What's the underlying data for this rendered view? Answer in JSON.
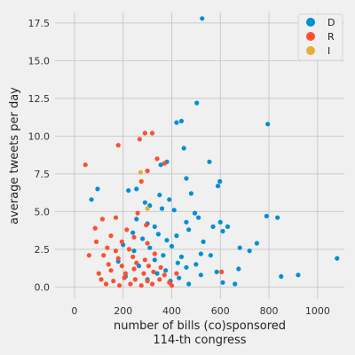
{
  "chart_data": {
    "type": "scatter",
    "xlabel": "number of bills (co)sponsored",
    "xlabel2": "114-th congress",
    "ylabel": "average tweets per day",
    "xlim": [
      -80,
      1110
    ],
    "ylim": [
      -0.8,
      18.2
    ],
    "x_ticks": [
      0,
      200,
      400,
      600,
      800,
      1000
    ],
    "y_ticks": [
      0.0,
      2.5,
      5.0,
      7.5,
      10.0,
      12.5,
      15.0,
      17.5
    ],
    "grid": true,
    "legend_position": "top-right",
    "series": [
      {
        "name": "D",
        "color": "#008fd5",
        "points": [
          [
            525,
            17.8
          ],
          [
            503,
            12.2
          ],
          [
            440,
            11.0
          ],
          [
            420,
            10.9
          ],
          [
            795,
            10.8
          ],
          [
            450,
            9.2
          ],
          [
            380,
            8.3
          ],
          [
            555,
            8.3
          ],
          [
            355,
            8.1
          ],
          [
            460,
            7.2
          ],
          [
            598,
            7.0
          ],
          [
            590,
            6.7
          ],
          [
            95,
            6.5
          ],
          [
            222,
            6.4
          ],
          [
            255,
            6.5
          ],
          [
            350,
            6.1
          ],
          [
            480,
            6.2
          ],
          [
            70,
            5.8
          ],
          [
            290,
            5.6
          ],
          [
            310,
            5.4
          ],
          [
            360,
            5.2
          ],
          [
            390,
            5.8
          ],
          [
            410,
            5.1
          ],
          [
            495,
            4.9
          ],
          [
            255,
            4.5
          ],
          [
            300,
            4.2
          ],
          [
            330,
            4.0
          ],
          [
            460,
            4.3
          ],
          [
            510,
            4.6
          ],
          [
            600,
            4.3
          ],
          [
            630,
            4.0
          ],
          [
            790,
            4.7
          ],
          [
            835,
            4.6
          ],
          [
            240,
            3.6
          ],
          [
            280,
            3.2
          ],
          [
            345,
            3.5
          ],
          [
            380,
            3.1
          ],
          [
            420,
            3.4
          ],
          [
            470,
            3.8
          ],
          [
            530,
            3.0
          ],
          [
            570,
            4.0
          ],
          [
            610,
            3.7
          ],
          [
            200,
            2.8
          ],
          [
            245,
            2.4
          ],
          [
            310,
            2.6
          ],
          [
            365,
            2.1
          ],
          [
            400,
            2.7
          ],
          [
            440,
            2.0
          ],
          [
            520,
            2.2
          ],
          [
            560,
            2.1
          ],
          [
            680,
            2.6
          ],
          [
            720,
            2.4
          ],
          [
            750,
            2.9
          ],
          [
            180,
            1.7
          ],
          [
            265,
            1.4
          ],
          [
            330,
            1.8
          ],
          [
            375,
            1.1
          ],
          [
            425,
            1.6
          ],
          [
            460,
            1.3
          ],
          [
            500,
            1.5
          ],
          [
            585,
            1.0
          ],
          [
            675,
            1.2
          ],
          [
            210,
            0.7
          ],
          [
            300,
            0.5
          ],
          [
            340,
            0.9
          ],
          [
            395,
            0.4
          ],
          [
            430,
            0.6
          ],
          [
            470,
            0.2
          ],
          [
            520,
            0.8
          ],
          [
            610,
            0.3
          ],
          [
            660,
            0.2
          ],
          [
            850,
            0.7
          ],
          [
            920,
            0.8
          ],
          [
            1080,
            1.9
          ]
        ]
      },
      {
        "name": "R",
        "color": "#fc4f30",
        "points": [
          [
            45,
            8.1
          ],
          [
            268,
            9.8
          ],
          [
            290,
            10.2
          ],
          [
            320,
            10.2
          ],
          [
            180,
            9.4
          ],
          [
            340,
            8.5
          ],
          [
            370,
            8.2
          ],
          [
            300,
            7.7
          ],
          [
            275,
            7.0
          ],
          [
            115,
            4.5
          ],
          [
            170,
            4.6
          ],
          [
            85,
            3.9
          ],
          [
            260,
            4.9
          ],
          [
            295,
            4.1
          ],
          [
            215,
            3.8
          ],
          [
            150,
            3.4
          ],
          [
            245,
            3.3
          ],
          [
            90,
            3.0
          ],
          [
            195,
            3.0
          ],
          [
            300,
            2.9
          ],
          [
            135,
            2.6
          ],
          [
            170,
            2.4
          ],
          [
            225,
            2.5
          ],
          [
            60,
            2.1
          ],
          [
            120,
            2.1
          ],
          [
            180,
            1.9
          ],
          [
            240,
            2.0
          ],
          [
            290,
            1.8
          ],
          [
            330,
            2.2
          ],
          [
            140,
            1.5
          ],
          [
            195,
            1.4
          ],
          [
            255,
            1.6
          ],
          [
            305,
            1.4
          ],
          [
            355,
            1.3
          ],
          [
            100,
            0.9
          ],
          [
            150,
            1.1
          ],
          [
            210,
            0.9
          ],
          [
            245,
            1.2
          ],
          [
            285,
            0.9
          ],
          [
            325,
            1.0
          ],
          [
            370,
            0.8
          ],
          [
            420,
            0.9
          ],
          [
            110,
            0.5
          ],
          [
            160,
            0.4
          ],
          [
            205,
            0.6
          ],
          [
            250,
            0.5
          ],
          [
            300,
            0.4
          ],
          [
            350,
            0.5
          ],
          [
            390,
            0.3
          ],
          [
            130,
            0.2
          ],
          [
            185,
            0.1
          ],
          [
            230,
            0.2
          ],
          [
            275,
            0.1
          ],
          [
            320,
            0.2
          ],
          [
            400,
            0.1
          ],
          [
            605,
            1.0
          ]
        ]
      },
      {
        "name": "I",
        "color": "#e5ae38",
        "points": [
          [
            272,
            7.6
          ],
          [
            300,
            5.2
          ]
        ]
      }
    ]
  }
}
